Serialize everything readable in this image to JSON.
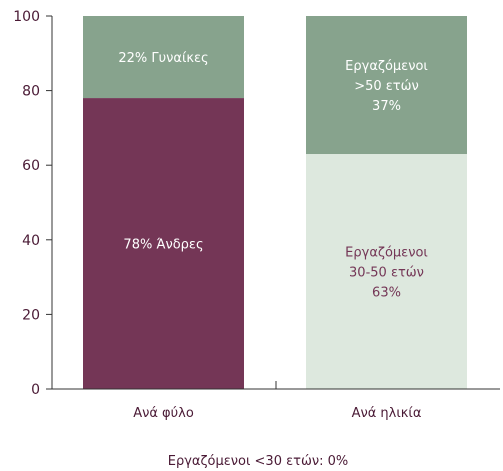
{
  "chart_data": {
    "type": "bar",
    "stacked": true,
    "percent": true,
    "categories": [
      "Ανά φύλο",
      "Ανά ηλικία"
    ],
    "ylim": [
      0,
      100
    ],
    "yticks": [
      "0",
      "20",
      "40",
      "60",
      "80",
      "100"
    ],
    "grid": false,
    "stacks": [
      {
        "category": "Ανά φύλο",
        "segments": [
          {
            "value": 78,
            "label": [
              "78%  Άνδρες"
            ],
            "color": "#743656",
            "text_color": "#ffffff"
          },
          {
            "value": 22,
            "label": [
              "22% Γυναίκες"
            ],
            "color": "#87a38d",
            "text_color": "#ffffff"
          }
        ]
      },
      {
        "category": "Ανά ηλικία",
        "segments": [
          {
            "value": 63,
            "label": [
              "Εργαζόμενοι",
              "30-50 ετών",
              "63%"
            ],
            "color": "#dde8de",
            "text_color": "#743656"
          },
          {
            "value": 37,
            "label": [
              "Εργαζόμενοι",
              ">50 ετών",
              "37%"
            ],
            "color": "#87a38d",
            "text_color": "#ffffff"
          }
        ]
      }
    ],
    "note": "Εργαζόμενοι <30 ετών: 0%"
  }
}
